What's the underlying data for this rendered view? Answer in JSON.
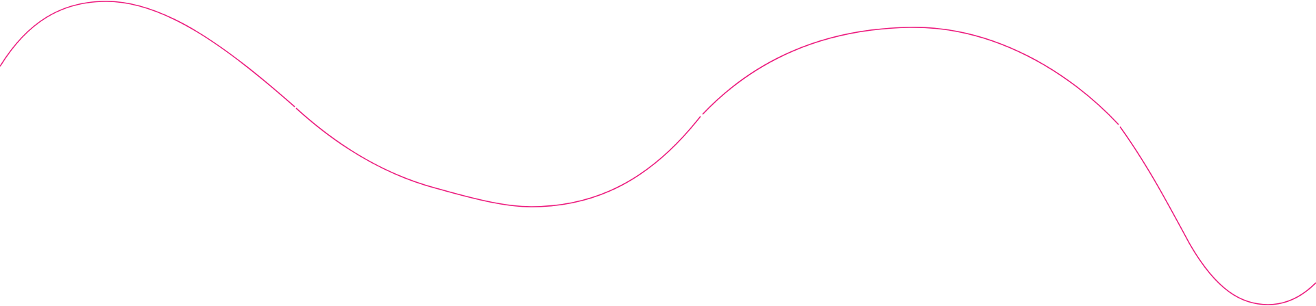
{
  "decoration": {
    "type": "wavy-line",
    "stroke_color": "#ec1a7d",
    "background_color": "#ffffff"
  }
}
